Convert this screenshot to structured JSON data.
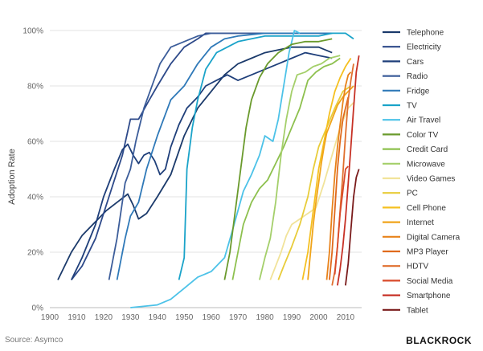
{
  "source_text": "Source: Asymco",
  "brand_text": "BLACKROCK",
  "chart_data": {
    "type": "line",
    "title": "",
    "xlabel": "",
    "ylabel": "Adoption Rate",
    "xlim": [
      1900,
      2016
    ],
    "ylim": [
      0,
      100
    ],
    "x_ticks": [
      1900,
      1910,
      1920,
      1930,
      1940,
      1950,
      1960,
      1970,
      1980,
      1990,
      2000,
      2010
    ],
    "y_ticks": [
      0,
      20,
      40,
      60,
      80,
      100
    ],
    "y_tick_labels": [
      "0%",
      "20%",
      "40%",
      "60%",
      "80%",
      "100%"
    ],
    "grid": "horizontal",
    "legend": "right",
    "series": [
      {
        "name": "Telephone",
        "color": "#1b3a6b",
        "points": [
          [
            1903,
            10
          ],
          [
            1908,
            20
          ],
          [
            1912,
            26
          ],
          [
            1918,
            32
          ],
          [
            1921,
            35
          ],
          [
            1925,
            38
          ],
          [
            1929,
            41
          ],
          [
            1931,
            37
          ],
          [
            1933,
            32
          ],
          [
            1936,
            34
          ],
          [
            1940,
            40
          ],
          [
            1945,
            48
          ],
          [
            1950,
            62
          ],
          [
            1955,
            72
          ],
          [
            1960,
            78
          ],
          [
            1965,
            84
          ],
          [
            1970,
            88
          ],
          [
            1975,
            90
          ],
          [
            1980,
            92
          ],
          [
            1985,
            93
          ],
          [
            1990,
            94
          ],
          [
            1995,
            94
          ],
          [
            2000,
            94
          ],
          [
            2005,
            92
          ]
        ]
      },
      {
        "name": "Electricity",
        "color": "#2e4a8a",
        "points": [
          [
            1908,
            10
          ],
          [
            1912,
            15
          ],
          [
            1917,
            25
          ],
          [
            1922,
            40
          ],
          [
            1927,
            55
          ],
          [
            1930,
            68
          ],
          [
            1933,
            68
          ],
          [
            1937,
            75
          ],
          [
            1940,
            80
          ],
          [
            1945,
            88
          ],
          [
            1950,
            94
          ],
          [
            1955,
            97
          ],
          [
            1958,
            99
          ],
          [
            1960,
            99
          ],
          [
            2005,
            99
          ]
        ]
      },
      {
        "name": "Cars",
        "color": "#1f3f7a",
        "points": [
          [
            1908,
            10
          ],
          [
            1912,
            18
          ],
          [
            1917,
            30
          ],
          [
            1920,
            40
          ],
          [
            1924,
            50
          ],
          [
            1927,
            57
          ],
          [
            1929,
            59
          ],
          [
            1931,
            55
          ],
          [
            1933,
            52
          ],
          [
            1935,
            55
          ],
          [
            1937,
            56
          ],
          [
            1939,
            53
          ],
          [
            1941,
            48
          ],
          [
            1943,
            50
          ],
          [
            1945,
            58
          ],
          [
            1948,
            66
          ],
          [
            1951,
            72
          ],
          [
            1955,
            76
          ],
          [
            1958,
            80
          ],
          [
            1962,
            82
          ],
          [
            1966,
            84
          ],
          [
            1970,
            82
          ],
          [
            1975,
            84
          ],
          [
            1980,
            86
          ],
          [
            1985,
            88
          ],
          [
            1990,
            90
          ],
          [
            1995,
            92
          ],
          [
            2000,
            91
          ],
          [
            2005,
            90
          ]
        ]
      },
      {
        "name": "Radio",
        "color": "#3c5d9a",
        "points": [
          [
            1922,
            10
          ],
          [
            1925,
            25
          ],
          [
            1928,
            45
          ],
          [
            1930,
            50
          ],
          [
            1932,
            60
          ],
          [
            1935,
            72
          ],
          [
            1938,
            80
          ],
          [
            1941,
            88
          ],
          [
            1945,
            94
          ],
          [
            1950,
            96
          ],
          [
            1955,
            98
          ],
          [
            1960,
            99
          ],
          [
            2005,
            99
          ]
        ]
      },
      {
        "name": "Fridge",
        "color": "#2f79b8",
        "points": [
          [
            1925,
            10
          ],
          [
            1928,
            25
          ],
          [
            1930,
            33
          ],
          [
            1933,
            38
          ],
          [
            1936,
            50
          ],
          [
            1940,
            62
          ],
          [
            1945,
            75
          ],
          [
            1950,
            80
          ],
          [
            1955,
            88
          ],
          [
            1960,
            94
          ],
          [
            1965,
            97
          ],
          [
            1970,
            98
          ],
          [
            1980,
            99
          ],
          [
            2005,
            99
          ]
        ]
      },
      {
        "name": "TV",
        "color": "#1aa3c9",
        "points": [
          [
            1948,
            10
          ],
          [
            1950,
            18
          ],
          [
            1951,
            50
          ],
          [
            1953,
            65
          ],
          [
            1955,
            75
          ],
          [
            1958,
            86
          ],
          [
            1962,
            92
          ],
          [
            1966,
            94
          ],
          [
            1970,
            96
          ],
          [
            1980,
            98
          ],
          [
            1990,
            98
          ],
          [
            2000,
            98
          ],
          [
            2005,
            99
          ],
          [
            2010,
            99
          ],
          [
            2013,
            97
          ]
        ]
      },
      {
        "name": "Air Travel",
        "color": "#4cc2e8",
        "points": [
          [
            1930,
            0
          ],
          [
            1940,
            1
          ],
          [
            1945,
            3
          ],
          [
            1950,
            7
          ],
          [
            1955,
            11
          ],
          [
            1960,
            13
          ],
          [
            1965,
            18
          ],
          [
            1968,
            28
          ],
          [
            1970,
            35
          ],
          [
            1972,
            42
          ],
          [
            1975,
            48
          ],
          [
            1978,
            55
          ],
          [
            1980,
            62
          ],
          [
            1983,
            60
          ],
          [
            1985,
            68
          ],
          [
            1987,
            80
          ],
          [
            1989,
            92
          ],
          [
            1991,
            100
          ],
          [
            1993,
            99
          ]
        ]
      },
      {
        "name": "Color TV",
        "color": "#6a9a2c",
        "points": [
          [
            1965,
            10
          ],
          [
            1967,
            20
          ],
          [
            1969,
            35
          ],
          [
            1971,
            50
          ],
          [
            1973,
            65
          ],
          [
            1975,
            75
          ],
          [
            1978,
            83
          ],
          [
            1981,
            88
          ],
          [
            1985,
            92
          ],
          [
            1990,
            95
          ],
          [
            1995,
            96
          ],
          [
            2000,
            96
          ],
          [
            2005,
            97
          ]
        ]
      },
      {
        "name": "Credit Card",
        "color": "#8dc04e",
        "points": [
          [
            1968,
            10
          ],
          [
            1970,
            20
          ],
          [
            1972,
            30
          ],
          [
            1975,
            38
          ],
          [
            1978,
            43
          ],
          [
            1981,
            46
          ],
          [
            1984,
            52
          ],
          [
            1987,
            58
          ],
          [
            1990,
            65
          ],
          [
            1993,
            72
          ],
          [
            1996,
            82
          ],
          [
            1999,
            85
          ],
          [
            2002,
            87
          ],
          [
            2005,
            88
          ],
          [
            2008,
            90
          ]
        ]
      },
      {
        "name": "Microwave",
        "color": "#a4cf6a",
        "points": [
          [
            1978,
            10
          ],
          [
            1980,
            18
          ],
          [
            1982,
            25
          ],
          [
            1984,
            38
          ],
          [
            1986,
            55
          ],
          [
            1988,
            68
          ],
          [
            1990,
            78
          ],
          [
            1992,
            84
          ],
          [
            1995,
            85
          ],
          [
            1998,
            87
          ],
          [
            2001,
            88
          ],
          [
            2004,
            90
          ],
          [
            2008,
            91
          ]
        ]
      },
      {
        "name": "Video Games",
        "color": "#f1e39a",
        "points": [
          [
            1982,
            10
          ],
          [
            1984,
            15
          ],
          [
            1986,
            20
          ],
          [
            1988,
            26
          ],
          [
            1990,
            30
          ],
          [
            1993,
            32
          ],
          [
            1996,
            34
          ],
          [
            1999,
            36
          ],
          [
            2002,
            45
          ],
          [
            2005,
            55
          ],
          [
            2008,
            65
          ],
          [
            2011,
            72
          ],
          [
            2013,
            74
          ]
        ]
      },
      {
        "name": "PC",
        "color": "#e8cc3a",
        "points": [
          [
            1985,
            10
          ],
          [
            1987,
            15
          ],
          [
            1990,
            22
          ],
          [
            1993,
            30
          ],
          [
            1996,
            40
          ],
          [
            1998,
            50
          ],
          [
            2000,
            58
          ],
          [
            2003,
            65
          ],
          [
            2006,
            72
          ],
          [
            2009,
            78
          ],
          [
            2012,
            80
          ]
        ]
      },
      {
        "name": "Cell Phone",
        "color": "#f5c020",
        "points": [
          [
            1994,
            10
          ],
          [
            1996,
            20
          ],
          [
            1998,
            35
          ],
          [
            2000,
            50
          ],
          [
            2002,
            60
          ],
          [
            2004,
            70
          ],
          [
            2006,
            78
          ],
          [
            2008,
            83
          ],
          [
            2010,
            87
          ],
          [
            2012,
            90
          ]
        ]
      },
      {
        "name": "Internet",
        "color": "#f0a41a",
        "points": [
          [
            1996,
            10
          ],
          [
            1997,
            20
          ],
          [
            1998,
            30
          ],
          [
            1999,
            38
          ],
          [
            2000,
            45
          ],
          [
            2001,
            52
          ],
          [
            2002,
            58
          ],
          [
            2003,
            63
          ],
          [
            2005,
            68
          ],
          [
            2007,
            73
          ],
          [
            2009,
            76
          ],
          [
            2011,
            78
          ],
          [
            2013,
            80
          ]
        ]
      },
      {
        "name": "Digital Camera",
        "color": "#e8821a",
        "points": [
          [
            2003,
            10
          ],
          [
            2004,
            20
          ],
          [
            2005,
            35
          ],
          [
            2006,
            48
          ],
          [
            2007,
            58
          ],
          [
            2008,
            66
          ],
          [
            2009,
            74
          ],
          [
            2010,
            80
          ],
          [
            2011,
            84
          ],
          [
            2012,
            85
          ]
        ]
      },
      {
        "name": "MP3 Player",
        "color": "#e06a1c",
        "points": [
          [
            2004,
            10
          ],
          [
            2005,
            20
          ],
          [
            2006,
            35
          ],
          [
            2007,
            50
          ],
          [
            2008,
            60
          ],
          [
            2009,
            68
          ],
          [
            2010,
            72
          ],
          [
            2011,
            76
          ]
        ]
      },
      {
        "name": "HDTV",
        "color": "#e06f2e",
        "points": [
          [
            2005,
            8
          ],
          [
            2006,
            13
          ],
          [
            2007,
            22
          ],
          [
            2008,
            35
          ],
          [
            2009,
            48
          ],
          [
            2010,
            62
          ],
          [
            2011,
            75
          ],
          [
            2012,
            82
          ],
          [
            2013,
            88
          ]
        ]
      },
      {
        "name": "Social Media",
        "color": "#d94a2a",
        "points": [
          [
            2006,
            12
          ],
          [
            2007,
            22
          ],
          [
            2008,
            34
          ],
          [
            2009,
            42
          ],
          [
            2010,
            50
          ],
          [
            2011,
            51
          ]
        ]
      },
      {
        "name": "Smartphone",
        "color": "#c73125",
        "points": [
          [
            2007,
            8
          ],
          [
            2008,
            14
          ],
          [
            2009,
            22
          ],
          [
            2010,
            32
          ],
          [
            2011,
            45
          ],
          [
            2012,
            58
          ],
          [
            2013,
            72
          ],
          [
            2014,
            85
          ],
          [
            2015,
            91
          ]
        ]
      },
      {
        "name": "Tablet",
        "color": "#7a1b1b",
        "points": [
          [
            2010,
            8
          ],
          [
            2011,
            16
          ],
          [
            2012,
            28
          ],
          [
            2013,
            40
          ],
          [
            2014,
            47
          ],
          [
            2015,
            50
          ]
        ]
      }
    ]
  }
}
